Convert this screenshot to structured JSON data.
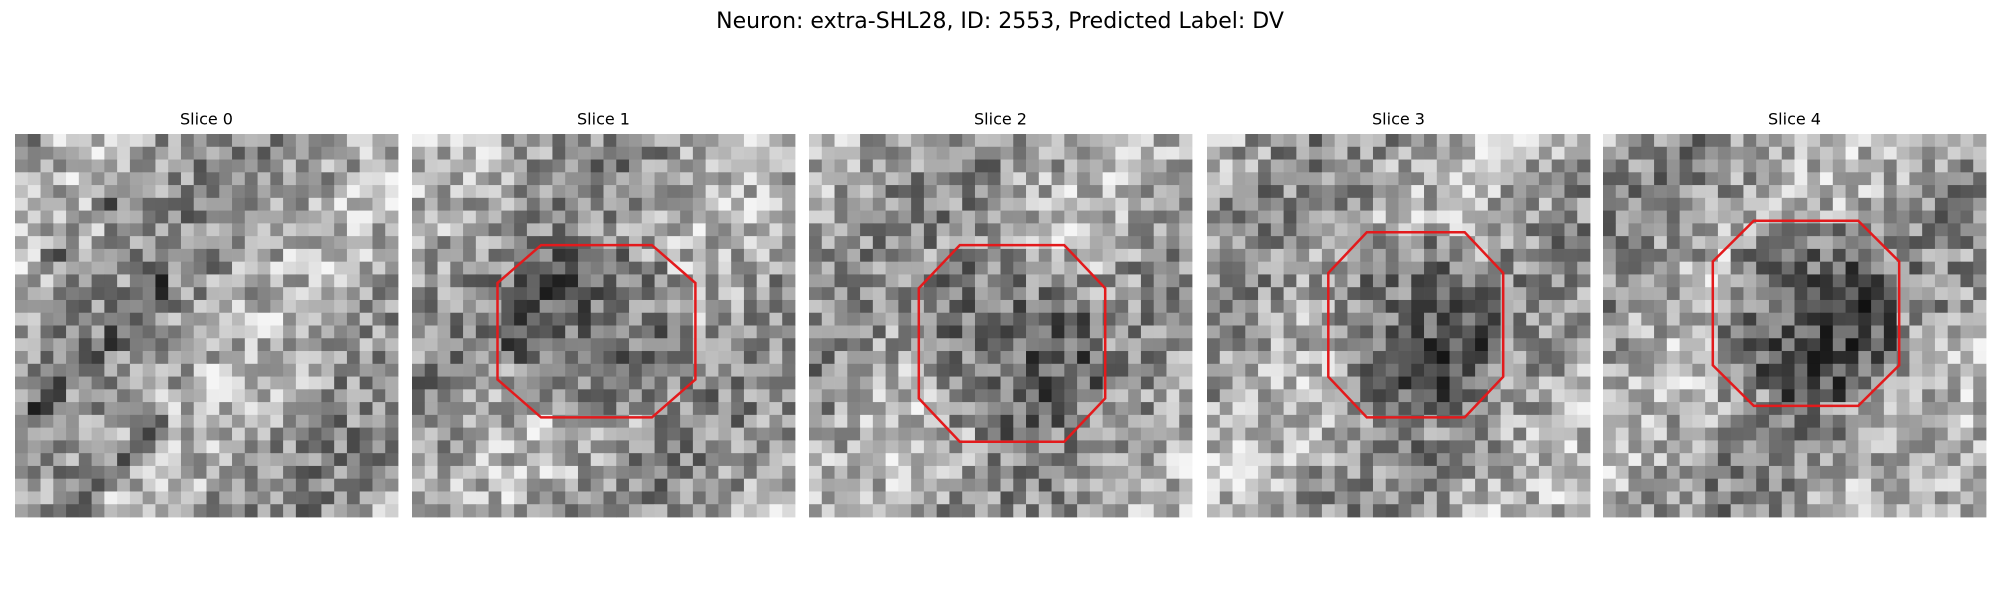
{
  "title": "Neuron: extra-SHL28, ID: 2553, Predicted Label: DV",
  "panels": [
    {
      "title": "Slice 0"
    },
    {
      "title": "Slice 1"
    },
    {
      "title": "Slice 2"
    },
    {
      "title": "Slice 3"
    },
    {
      "title": "Slice 4"
    }
  ]
}
